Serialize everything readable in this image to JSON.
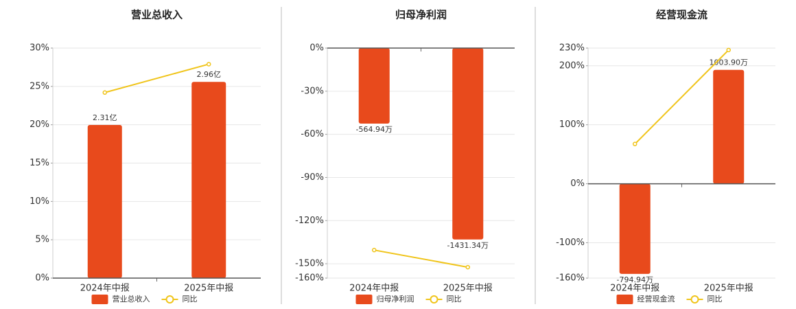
{
  "chart_data": [
    {
      "type": "bar",
      "title": "营业总收入",
      "categories": [
        "2024年中报",
        "2025年中报"
      ],
      "series": [
        {
          "name": "营业总收入",
          "color": "#e84a1c",
          "axis": "y2",
          "values": [
            2.31,
            2.96
          ],
          "value_labels": [
            "2.31亿",
            "2.96亿"
          ]
        },
        {
          "name": "同比",
          "color": "#f0c419",
          "type": "line",
          "values": [
            24.2,
            27.9
          ]
        }
      ],
      "ylim": [
        0,
        30
      ],
      "yticks": [
        {
          "value": 0,
          "label": "0%"
        },
        {
          "value": 5,
          "label": "5%"
        },
        {
          "value": 10,
          "label": "10%"
        },
        {
          "value": 15,
          "label": "15%"
        },
        {
          "value": 20,
          "label": "20%"
        },
        {
          "value": 25,
          "label": "25%"
        },
        {
          "value": 30,
          "label": "30%"
        }
      ],
      "y2lim": [
        0,
        3.47
      ],
      "grid": true,
      "legend": "bottom"
    },
    {
      "type": "bar",
      "title": "归母净利润",
      "categories": [
        "2024年中报",
        "2025年中报"
      ],
      "series": [
        {
          "name": "归母净利润",
          "color": "#e84a1c",
          "axis": "y2",
          "values": [
            -564.94,
            -1431.34
          ],
          "value_labels": [
            "-564.94万",
            "-1431.34万"
          ]
        },
        {
          "name": "同比",
          "color": "#f0c419",
          "type": "line",
          "values": [
            -140.5,
            -152.4
          ]
        }
      ],
      "ylim": [
        -160,
        0
      ],
      "yticks": [
        {
          "value": 0,
          "label": "0%"
        },
        {
          "value": -30,
          "label": "-30%"
        },
        {
          "value": -60,
          "label": "-60%"
        },
        {
          "value": -90,
          "label": "-90%"
        },
        {
          "value": -120,
          "label": "-120%"
        },
        {
          "value": -150,
          "label": "-150%"
        },
        {
          "value": -160,
          "label": "-160%"
        }
      ],
      "y2lim": [
        -1720,
        0
      ],
      "grid": true,
      "legend": "bottom"
    },
    {
      "type": "bar",
      "title": "经营现金流",
      "categories": [
        "2024年中报",
        "2025年中报"
      ],
      "series": [
        {
          "name": "经营现金流",
          "color": "#e84a1c",
          "axis": "y2",
          "values": [
            -794.94,
            1003.9
          ],
          "value_labels": [
            "-794.94万",
            "1003.90万"
          ]
        },
        {
          "name": "同比",
          "color": "#f0c419",
          "type": "line",
          "values": [
            67.4,
            226.7
          ]
        }
      ],
      "ylim": [
        -160,
        230
      ],
      "yticks": [
        {
          "value": 230,
          "label": "230%"
        },
        {
          "value": 200,
          "label": "200%"
        },
        {
          "value": 100,
          "label": "100%"
        },
        {
          "value": 0,
          "label": "0%"
        },
        {
          "value": -100,
          "label": "-100%"
        },
        {
          "value": -160,
          "label": "-160%"
        }
      ],
      "y2lim": [
        -832,
        1196
      ],
      "grid": true,
      "legend": "bottom"
    }
  ]
}
